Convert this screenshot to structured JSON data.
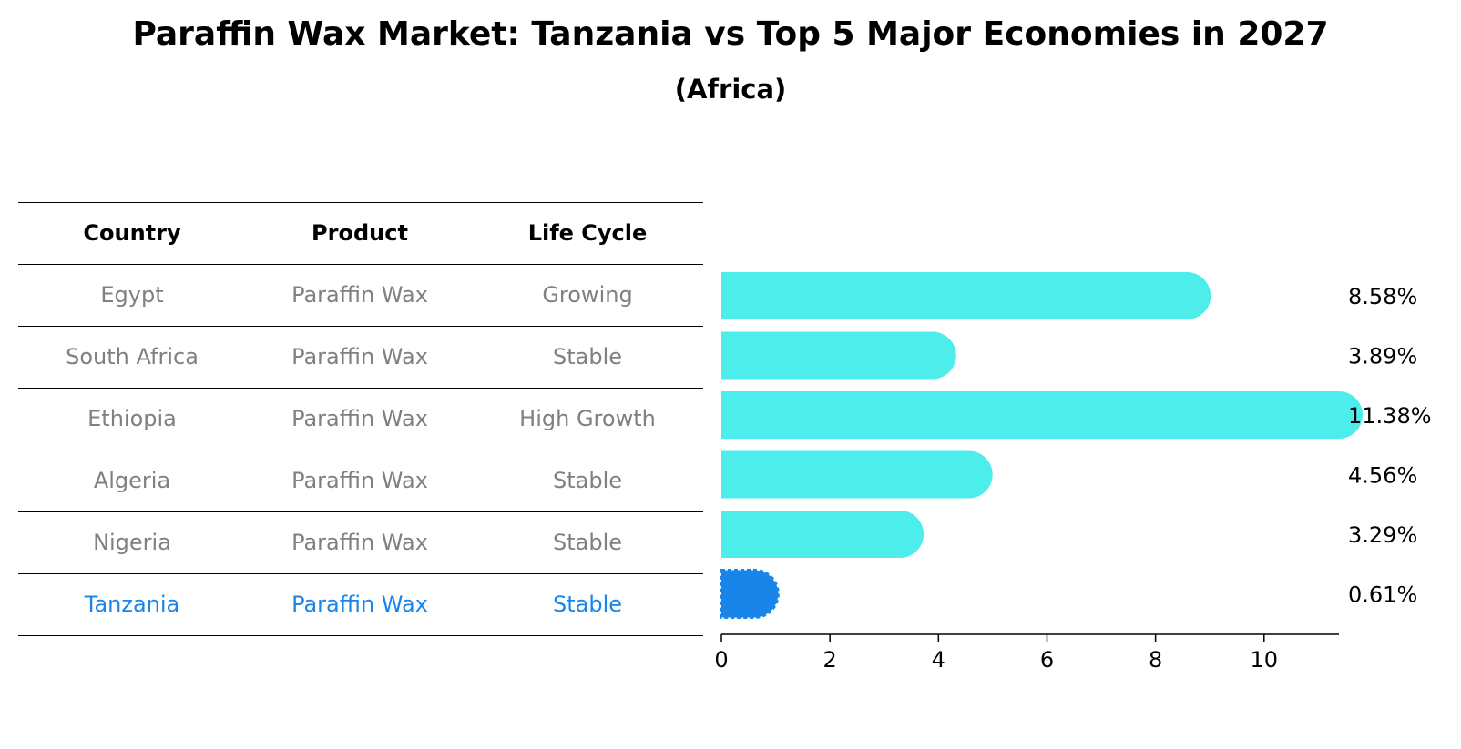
{
  "title": "Paraffin Wax Market: Tanzania vs Top 5 Major Economies in 2027",
  "subtitle": "(Africa)",
  "table": {
    "headers": [
      "Country",
      "Product",
      "Life Cycle"
    ],
    "rows": [
      {
        "country": "Egypt",
        "product": "Paraffin Wax",
        "life_cycle": "Growing"
      },
      {
        "country": "South Africa",
        "product": "Paraffin Wax",
        "life_cycle": "Stable"
      },
      {
        "country": "Ethiopia",
        "product": "Paraffin Wax",
        "life_cycle": "High Growth"
      },
      {
        "country": "Algeria",
        "product": "Paraffin Wax",
        "life_cycle": "Stable"
      },
      {
        "country": "Nigeria",
        "product": "Paraffin Wax",
        "life_cycle": "Stable"
      },
      {
        "country": "Tanzania",
        "product": "Paraffin Wax",
        "life_cycle": "Stable"
      }
    ]
  },
  "colors": {
    "bar": "#4DEDEB",
    "highlight": "#1A85E8",
    "muted_text": "#808080"
  },
  "chart_data": {
    "type": "bar",
    "orientation": "horizontal",
    "categories": [
      "Egypt",
      "South Africa",
      "Ethiopia",
      "Algeria",
      "Nigeria",
      "Tanzania"
    ],
    "values": [
      8.58,
      3.89,
      11.38,
      4.56,
      3.29,
      0.61
    ],
    "value_labels": [
      "8.58%",
      "3.89%",
      "11.38%",
      "4.56%",
      "3.29%",
      "0.61%"
    ],
    "highlight": "Tanzania",
    "xlim": [
      0,
      11.38
    ],
    "xticks": [
      0,
      2,
      4,
      6,
      8,
      10
    ],
    "xlabel": "",
    "ylabel": "",
    "grid": false
  }
}
